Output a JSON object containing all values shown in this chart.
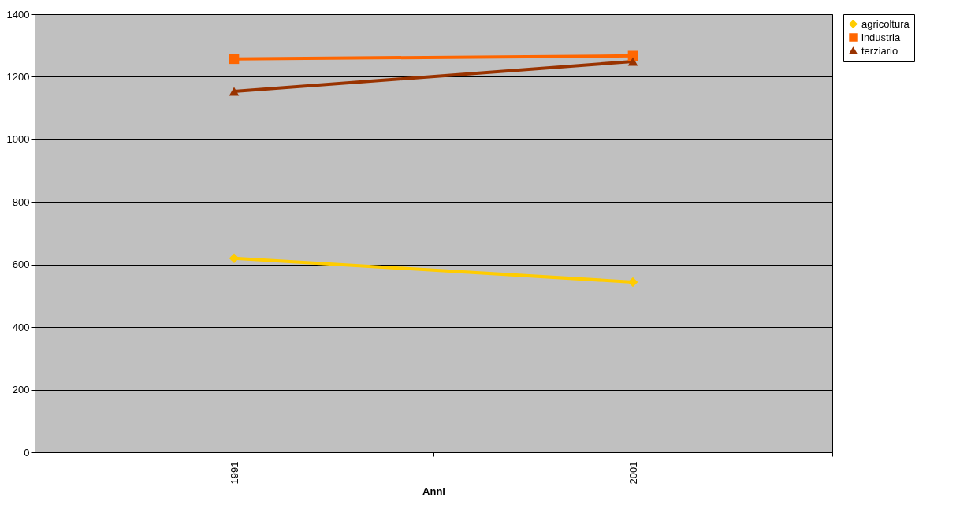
{
  "chart_data": {
    "type": "line",
    "xlabel": "Anni",
    "categories": [
      "1991",
      "2001"
    ],
    "series": [
      {
        "name": "agricoltura",
        "color": "#ffcc00",
        "marker": "diamond",
        "values": [
          620,
          544
        ]
      },
      {
        "name": "industria",
        "color": "#ff6600",
        "marker": "square",
        "values": [
          1257,
          1267
        ]
      },
      {
        "name": "terziario",
        "color": "#993300",
        "marker": "triangle",
        "values": [
          1153,
          1249
        ]
      }
    ],
    "ylim": [
      0,
      1400
    ],
    "yticks": [
      0,
      200,
      400,
      600,
      800,
      1000,
      1200,
      1400
    ],
    "grid": "y",
    "legend": "right",
    "line_style": "solid"
  }
}
